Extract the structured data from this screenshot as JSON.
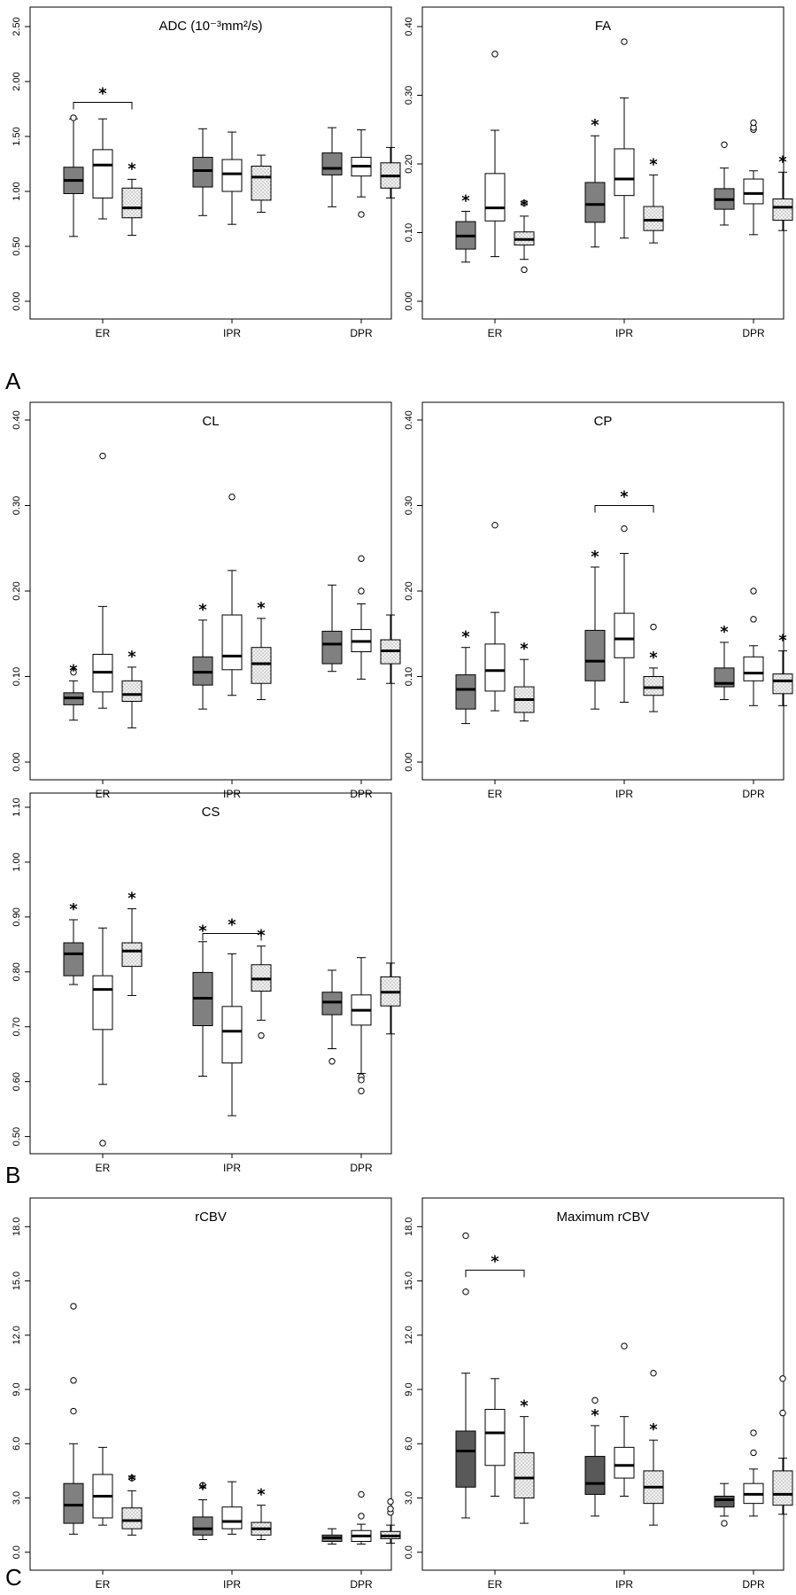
{
  "panel_letters": [
    "A",
    "B",
    "C"
  ],
  "colors": {
    "group_1": "#808080",
    "group_1_alt": "#595959",
    "group_2": "#ffffff",
    "group_3": "#f2f2f2",
    "stroke": "#000000"
  },
  "chart_data": [
    {
      "type": "box",
      "title": "ADC (10⁻³mm²/s)",
      "categories": [
        "ER",
        "IPR",
        "DPR"
      ],
      "yticks": [
        "0.00",
        "0.50",
        "1.00",
        "1.50",
        "2.00",
        "2.50"
      ],
      "ylim": [
        0,
        2.5
      ],
      "series": [
        {
          "values": [
            {
              "min": 0.59,
              "q1": 0.98,
              "med": 1.1,
              "q3": 1.22,
              "max": 1.66,
              "outliers": [
                1.67
              ],
              "star": false
            },
            {
              "min": 0.78,
              "q1": 1.04,
              "med": 1.19,
              "q3": 1.31,
              "max": 1.57,
              "outliers": [],
              "star": false
            },
            {
              "min": 0.86,
              "q1": 1.15,
              "med": 1.21,
              "q3": 1.35,
              "max": 1.58,
              "outliers": [],
              "star": false
            }
          ]
        },
        {
          "values": [
            {
              "min": 0.75,
              "q1": 0.94,
              "med": 1.24,
              "q3": 1.38,
              "max": 1.66,
              "outliers": [],
              "star": false
            },
            {
              "min": 0.7,
              "q1": 1.0,
              "med": 1.16,
              "q3": 1.29,
              "max": 1.54,
              "outliers": [],
              "star": false
            },
            {
              "min": 0.95,
              "q1": 1.14,
              "med": 1.23,
              "q3": 1.31,
              "max": 1.56,
              "outliers": [
                0.79
              ],
              "star": false
            }
          ]
        },
        {
          "values": [
            {
              "min": 0.6,
              "q1": 0.76,
              "med": 0.85,
              "q3": 1.03,
              "max": 1.11,
              "outliers": [],
              "star": true
            },
            {
              "min": 0.81,
              "q1": 0.92,
              "med": 1.13,
              "q3": 1.23,
              "max": 1.33,
              "outliers": [],
              "star": false
            },
            {
              "min": 0.94,
              "q1": 1.03,
              "med": 1.14,
              "q3": 1.26,
              "max": 1.4,
              "outliers": [],
              "star": false
            }
          ]
        }
      ],
      "brackets": [
        {
          "category": 0,
          "from": 0,
          "to": 2,
          "y": 1.81
        }
      ]
    },
    {
      "type": "box",
      "title": "FA",
      "categories": [
        "ER",
        "IPR",
        "DPR"
      ],
      "yticks": [
        "0.00",
        "0.10",
        "0.20",
        "0.30",
        "0.40"
      ],
      "ylim": [
        0,
        0.4
      ],
      "series": [
        {
          "values": [
            {
              "min": 0.057,
              "q1": 0.076,
              "med": 0.095,
              "q3": 0.116,
              "max": 0.131,
              "outliers": [],
              "star": true
            },
            {
              "min": 0.079,
              "q1": 0.115,
              "med": 0.141,
              "q3": 0.173,
              "max": 0.241,
              "outliers": [],
              "star": true
            },
            {
              "min": 0.111,
              "q1": 0.134,
              "med": 0.148,
              "q3": 0.164,
              "max": 0.194,
              "outliers": [
                0.228
              ],
              "star": false
            }
          ]
        },
        {
          "values": [
            {
              "min": 0.065,
              "q1": 0.117,
              "med": 0.136,
              "q3": 0.186,
              "max": 0.249,
              "outliers": [
                0.36
              ],
              "star": false
            },
            {
              "min": 0.092,
              "q1": 0.154,
              "med": 0.178,
              "q3": 0.222,
              "max": 0.296,
              "outliers": [
                0.378
              ],
              "star": false
            },
            {
              "min": 0.097,
              "q1": 0.142,
              "med": 0.157,
              "q3": 0.178,
              "max": 0.19,
              "outliers": [
                0.25,
                0.253,
                0.26
              ],
              "star": false
            }
          ]
        },
        {
          "values": [
            {
              "min": 0.061,
              "q1": 0.082,
              "med": 0.09,
              "q3": 0.101,
              "max": 0.124,
              "outliers": [
                0.143,
                0.046
              ],
              "star": true
            },
            {
              "min": 0.085,
              "q1": 0.103,
              "med": 0.118,
              "q3": 0.138,
              "max": 0.184,
              "outliers": [],
              "star": true
            },
            {
              "min": 0.103,
              "q1": 0.118,
              "med": 0.137,
              "q3": 0.149,
              "max": 0.188,
              "outliers": [],
              "star": true
            }
          ]
        }
      ],
      "brackets": []
    },
    {
      "type": "box",
      "title": "CL",
      "categories": [
        "ER",
        "IPR",
        "DPR"
      ],
      "yticks": [
        "0.00",
        "0.10",
        "0.20",
        "0.30",
        "0.40"
      ],
      "ylim": [
        0,
        0.4
      ],
      "series": [
        {
          "values": [
            {
              "min": 0.049,
              "q1": 0.067,
              "med": 0.075,
              "q3": 0.081,
              "max": 0.095,
              "outliers": [
                0.105
              ],
              "star": true
            },
            {
              "min": 0.062,
              "q1": 0.09,
              "med": 0.105,
              "q3": 0.123,
              "max": 0.166,
              "outliers": [],
              "star": true
            },
            {
              "min": 0.106,
              "q1": 0.115,
              "med": 0.138,
              "q3": 0.153,
              "max": 0.207,
              "outliers": [],
              "star": false
            }
          ]
        },
        {
          "values": [
            {
              "min": 0.063,
              "q1": 0.082,
              "med": 0.105,
              "q3": 0.126,
              "max": 0.182,
              "outliers": [
                0.358
              ],
              "star": false
            },
            {
              "min": 0.078,
              "q1": 0.108,
              "med": 0.124,
              "q3": 0.172,
              "max": 0.224,
              "outliers": [
                0.31
              ],
              "star": false
            },
            {
              "min": 0.097,
              "q1": 0.129,
              "med": 0.141,
              "q3": 0.155,
              "max": 0.185,
              "outliers": [
                0.2,
                0.238
              ],
              "star": false
            }
          ]
        },
        {
          "values": [
            {
              "min": 0.04,
              "q1": 0.071,
              "med": 0.079,
              "q3": 0.095,
              "max": 0.111,
              "outliers": [],
              "star": true
            },
            {
              "min": 0.073,
              "q1": 0.092,
              "med": 0.115,
              "q3": 0.134,
              "max": 0.168,
              "outliers": [],
              "star": true
            },
            {
              "min": 0.092,
              "q1": 0.115,
              "med": 0.13,
              "q3": 0.143,
              "max": 0.172,
              "outliers": [],
              "star": false
            }
          ]
        }
      ],
      "brackets": []
    },
    {
      "type": "box",
      "title": "CP",
      "categories": [
        "ER",
        "IPR",
        "DPR"
      ],
      "yticks": [
        "0.00",
        "0.10",
        "0.20",
        "0.30",
        "0.40"
      ],
      "ylim": [
        0,
        0.4
      ],
      "series": [
        {
          "values": [
            {
              "min": 0.045,
              "q1": 0.062,
              "med": 0.085,
              "q3": 0.102,
              "max": 0.134,
              "outliers": [],
              "star": true
            },
            {
              "min": 0.062,
              "q1": 0.095,
              "med": 0.118,
              "q3": 0.154,
              "max": 0.228,
              "outliers": [],
              "star": true
            },
            {
              "min": 0.073,
              "q1": 0.088,
              "med": 0.092,
              "q3": 0.11,
              "max": 0.14,
              "outliers": [],
              "star": true
            }
          ]
        },
        {
          "values": [
            {
              "min": 0.06,
              "q1": 0.083,
              "med": 0.107,
              "q3": 0.138,
              "max": 0.175,
              "outliers": [
                0.277
              ],
              "star": false
            },
            {
              "min": 0.07,
              "q1": 0.122,
              "med": 0.144,
              "q3": 0.174,
              "max": 0.244,
              "outliers": [
                0.273
              ],
              "star": false
            },
            {
              "min": 0.066,
              "q1": 0.095,
              "med": 0.104,
              "q3": 0.123,
              "max": 0.136,
              "outliers": [
                0.167,
                0.2
              ],
              "star": false
            }
          ]
        },
        {
          "values": [
            {
              "min": 0.048,
              "q1": 0.058,
              "med": 0.073,
              "q3": 0.088,
              "max": 0.12,
              "outliers": [],
              "star": true
            },
            {
              "min": 0.059,
              "q1": 0.078,
              "med": 0.087,
              "q3": 0.1,
              "max": 0.11,
              "outliers": [
                0.158
              ],
              "star": true
            },
            {
              "min": 0.066,
              "q1": 0.08,
              "med": 0.095,
              "q3": 0.103,
              "max": 0.13,
              "outliers": [],
              "star": true
            }
          ]
        }
      ],
      "brackets": [
        {
          "category": 1,
          "from": 0,
          "to": 2,
          "y": 0.3
        }
      ]
    },
    {
      "type": "box",
      "title": "CS",
      "categories": [
        "ER",
        "IPR",
        "DPR"
      ],
      "yticks": [
        "0.50",
        "0.60",
        "0.70",
        "0.80",
        "0.90",
        "1.00",
        "1.10"
      ],
      "ylim": [
        0.48,
        1.1
      ],
      "series": [
        {
          "values": [
            {
              "min": 0.777,
              "q1": 0.793,
              "med": 0.833,
              "q3": 0.853,
              "max": 0.895,
              "outliers": [],
              "star": true
            },
            {
              "min": 0.61,
              "q1": 0.702,
              "med": 0.752,
              "q3": 0.799,
              "max": 0.855,
              "outliers": [],
              "star": true
            },
            {
              "min": 0.66,
              "q1": 0.722,
              "med": 0.745,
              "q3": 0.763,
              "max": 0.803,
              "outliers": [
                0.637
              ],
              "star": false
            }
          ]
        },
        {
          "values": [
            {
              "min": 0.595,
              "q1": 0.695,
              "med": 0.768,
              "q3": 0.793,
              "max": 0.88,
              "outliers": [
                0.488
              ],
              "star": false
            },
            {
              "min": 0.538,
              "q1": 0.634,
              "med": 0.692,
              "q3": 0.737,
              "max": 0.833,
              "outliers": [],
              "star": false
            },
            {
              "min": 0.615,
              "q1": 0.703,
              "med": 0.73,
              "q3": 0.758,
              "max": 0.826,
              "outliers": [
                0.609,
                0.603,
                0.583
              ],
              "star": false
            }
          ]
        },
        {
          "values": [
            {
              "min": 0.757,
              "q1": 0.81,
              "med": 0.838,
              "q3": 0.853,
              "max": 0.915,
              "outliers": [],
              "star": true
            },
            {
              "min": 0.712,
              "q1": 0.765,
              "med": 0.787,
              "q3": 0.813,
              "max": 0.847,
              "outliers": [
                0.684
              ],
              "star": true
            },
            {
              "min": 0.687,
              "q1": 0.738,
              "med": 0.763,
              "q3": 0.791,
              "max": 0.816,
              "outliers": [],
              "star": false
            }
          ]
        }
      ],
      "brackets": [
        {
          "category": 1,
          "from": 0,
          "to": 2,
          "y": 0.87
        }
      ]
    },
    {
      "type": "box",
      "title": "rCBV",
      "categories": [
        "ER",
        "IPR",
        "DPR"
      ],
      "yticks": [
        "0.0",
        "3.0",
        "6.0",
        "9.0",
        "12.0",
        "15.0",
        "18.0"
      ],
      "ylim": [
        -0.6,
        18.8
      ],
      "series": [
        {
          "values": [
            {
              "min": 1.0,
              "q1": 1.6,
              "med": 2.6,
              "q3": 3.8,
              "max": 6.0,
              "outliers": [
                7.8,
                9.5,
                13.6
              ],
              "star": false
            },
            {
              "min": 0.7,
              "q1": 0.95,
              "med": 1.3,
              "q3": 1.95,
              "max": 2.9,
              "outliers": [
                3.7
              ],
              "star": true
            },
            {
              "min": 0.45,
              "q1": 0.6,
              "med": 0.8,
              "q3": 0.95,
              "max": 1.3,
              "outliers": [],
              "star": false
            }
          ]
        },
        {
          "values": [
            {
              "min": 1.5,
              "q1": 1.9,
              "med": 3.1,
              "q3": 4.3,
              "max": 5.8,
              "outliers": [],
              "star": false
            },
            {
              "min": 1.0,
              "q1": 1.3,
              "med": 1.7,
              "q3": 2.5,
              "max": 3.9,
              "outliers": [],
              "star": false
            },
            {
              "min": 0.45,
              "q1": 0.6,
              "med": 0.9,
              "q3": 1.2,
              "max": 1.55,
              "outliers": [
                2.0,
                3.2
              ],
              "star": false
            }
          ]
        },
        {
          "values": [
            {
              "min": 0.95,
              "q1": 1.3,
              "med": 1.75,
              "q3": 2.45,
              "max": 3.4,
              "outliers": [
                4.1
              ],
              "star": true
            },
            {
              "min": 0.7,
              "q1": 0.95,
              "med": 1.3,
              "q3": 1.65,
              "max": 2.6,
              "outliers": [],
              "star": true
            },
            {
              "min": 0.5,
              "q1": 0.75,
              "med": 0.9,
              "q3": 1.15,
              "max": 1.5,
              "outliers": [
                2.2,
                2.4,
                2.8
              ],
              "star": false
            }
          ]
        }
      ],
      "brackets": []
    },
    {
      "type": "box",
      "title": "Maximum rCBV",
      "categories": [
        "ER",
        "IPR",
        "DPR"
      ],
      "yticks": [
        "0.0",
        "3.0",
        "6.0",
        "9.0",
        "12.0",
        "15.0",
        "18.0"
      ],
      "ylim": [
        -0.6,
        18.8
      ],
      "series": [
        {
          "values": [
            {
              "min": 1.9,
              "q1": 3.6,
              "med": 5.6,
              "q3": 6.7,
              "max": 9.9,
              "outliers": [
                14.4,
                17.5
              ],
              "star": false
            },
            {
              "min": 2.0,
              "q1": 3.2,
              "med": 3.8,
              "q3": 5.3,
              "max": 7.0,
              "outliers": [
                8.4
              ],
              "star": true
            },
            {
              "min": 2.0,
              "q1": 2.5,
              "med": 2.9,
              "q3": 3.1,
              "max": 3.8,
              "outliers": [
                1.6
              ],
              "star": false
            }
          ]
        },
        {
          "values": [
            {
              "min": 3.1,
              "q1": 4.8,
              "med": 6.6,
              "q3": 7.9,
              "max": 9.6,
              "outliers": [],
              "star": false
            },
            {
              "min": 3.1,
              "q1": 4.1,
              "med": 4.8,
              "q3": 5.8,
              "max": 7.5,
              "outliers": [
                11.4
              ],
              "star": false
            },
            {
              "min": 2.0,
              "q1": 2.7,
              "med": 3.2,
              "q3": 3.8,
              "max": 4.6,
              "outliers": [
                5.5,
                6.6
              ],
              "star": false
            }
          ]
        },
        {
          "values": [
            {
              "min": 1.6,
              "q1": 3.0,
              "med": 4.1,
              "q3": 5.5,
              "max": 7.5,
              "outliers": [],
              "star": true
            },
            {
              "min": 1.5,
              "q1": 2.7,
              "med": 3.6,
              "q3": 4.5,
              "max": 6.2,
              "outliers": [
                9.9
              ],
              "star": true
            },
            {
              "min": 2.1,
              "q1": 2.6,
              "med": 3.2,
              "q3": 4.5,
              "max": 5.2,
              "outliers": [
                7.7,
                9.6
              ],
              "star": false
            }
          ]
        }
      ],
      "brackets": [
        {
          "category": 0,
          "from": 0,
          "to": 2,
          "y": 15.6
        }
      ]
    }
  ]
}
